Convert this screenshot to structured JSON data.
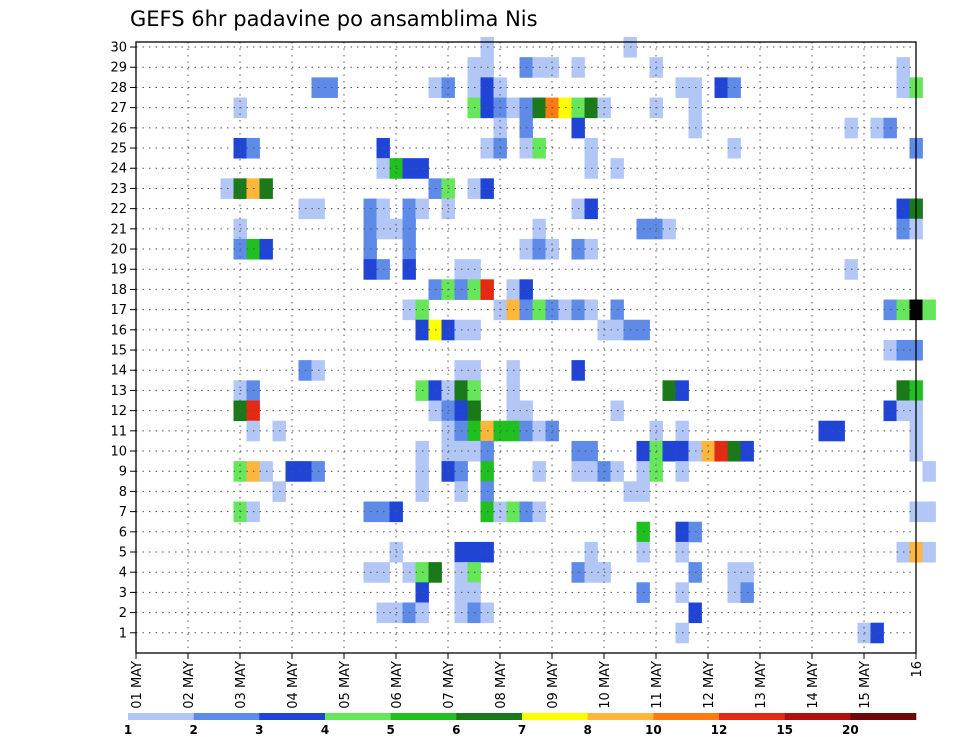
{
  "chart_data": {
    "type": "heatmap",
    "title": "GEFS 6hr padavine po ansamblima Nis",
    "y_ticks": [
      "1",
      "2",
      "3",
      "4",
      "5",
      "6",
      "7",
      "8",
      "9",
      "10",
      "11",
      "12",
      "13",
      "14",
      "15",
      "16",
      "17",
      "18",
      "19",
      "20",
      "21",
      "22",
      "23",
      "24",
      "25",
      "26",
      "27",
      "28",
      "29",
      "30"
    ],
    "x_ticks": [
      "01 MAY",
      "02 MAY",
      "03 MAY",
      "04 MAY",
      "05 MAY",
      "06 MAY",
      "07 MAY",
      "08 MAY",
      "09 MAY",
      "10 MAY",
      "11 MAY",
      "12 MAY",
      "13 MAY",
      "14 MAY",
      "15 MAY",
      "16"
    ],
    "x_range_days": [
      1,
      16
    ],
    "y_range_members": [
      1,
      30
    ],
    "grid": true,
    "colorbar": {
      "ticks": [
        "1",
        "2",
        "3",
        "4",
        "5",
        "6",
        "7",
        "8",
        "10",
        "12",
        "15",
        "20"
      ],
      "colors": [
        "#b3c7f7",
        "#5f8be8",
        "#1f44d6",
        "#65e65b",
        "#20c020",
        "#1a7a1a",
        "#ffff00",
        "#ffb63a",
        "#ff7a10",
        "#e62a12",
        "#b01010",
        "#6e0808"
      ]
    },
    "cells": [
      [
        7.75,
        30,
        1
      ],
      [
        10.5,
        30,
        1
      ],
      [
        7.5,
        29,
        1
      ],
      [
        7.75,
        29,
        1
      ],
      [
        8.5,
        29,
        2
      ],
      [
        8.75,
        29,
        1
      ],
      [
        9.0,
        29,
        1
      ],
      [
        9.5,
        29,
        1
      ],
      [
        11.0,
        29,
        1
      ],
      [
        15.75,
        29,
        1
      ],
      [
        4.5,
        28,
        2
      ],
      [
        4.75,
        28,
        2
      ],
      [
        6.75,
        28,
        1
      ],
      [
        7.0,
        28,
        2
      ],
      [
        7.5,
        28,
        1
      ],
      [
        7.75,
        28,
        3
      ],
      [
        8.0,
        28,
        1
      ],
      [
        11.5,
        28,
        1
      ],
      [
        11.75,
        28,
        1
      ],
      [
        12.25,
        28,
        3
      ],
      [
        12.5,
        28,
        2
      ],
      [
        15.75,
        28,
        1
      ],
      [
        16.0,
        28,
        4
      ],
      [
        3.0,
        27,
        1
      ],
      [
        7.5,
        27,
        4
      ],
      [
        7.75,
        27,
        3
      ],
      [
        8.0,
        27,
        2
      ],
      [
        8.25,
        27,
        1
      ],
      [
        8.5,
        27,
        2
      ],
      [
        8.75,
        27,
        6
      ],
      [
        9.0,
        27,
        9
      ],
      [
        9.25,
        27,
        7
      ],
      [
        9.5,
        27,
        4
      ],
      [
        9.75,
        27,
        6
      ],
      [
        10.0,
        27,
        1
      ],
      [
        11.0,
        27,
        1
      ],
      [
        11.75,
        27,
        1
      ],
      [
        8.0,
        26,
        1
      ],
      [
        8.5,
        26,
        2
      ],
      [
        9.5,
        26,
        3
      ],
      [
        11.75,
        26,
        1
      ],
      [
        14.75,
        26,
        1
      ],
      [
        15.25,
        26,
        1
      ],
      [
        15.5,
        26,
        2
      ],
      [
        3.0,
        25,
        3
      ],
      [
        3.25,
        25,
        2
      ],
      [
        5.75,
        25,
        3
      ],
      [
        7.75,
        25,
        1
      ],
      [
        8.0,
        25,
        2
      ],
      [
        8.5,
        25,
        1
      ],
      [
        8.75,
        25,
        4
      ],
      [
        9.75,
        25,
        1
      ],
      [
        12.5,
        25,
        1
      ],
      [
        16.0,
        25,
        2
      ],
      [
        5.75,
        24,
        1
      ],
      [
        6.0,
        24,
        5
      ],
      [
        6.25,
        24,
        3
      ],
      [
        6.5,
        24,
        3
      ],
      [
        9.75,
        24,
        1
      ],
      [
        10.25,
        24,
        1
      ],
      [
        2.75,
        23,
        1
      ],
      [
        3.0,
        23,
        6
      ],
      [
        3.25,
        23,
        8
      ],
      [
        3.5,
        23,
        6
      ],
      [
        6.75,
        23,
        2
      ],
      [
        7.0,
        23,
        4
      ],
      [
        7.5,
        23,
        1
      ],
      [
        7.75,
        23,
        3
      ],
      [
        4.25,
        22,
        1
      ],
      [
        4.5,
        22,
        1
      ],
      [
        5.5,
        22,
        2
      ],
      [
        5.75,
        22,
        1
      ],
      [
        6.25,
        22,
        2
      ],
      [
        6.5,
        22,
        1
      ],
      [
        7.0,
        22,
        1
      ],
      [
        9.5,
        22,
        1
      ],
      [
        9.75,
        22,
        3
      ],
      [
        15.75,
        22,
        3
      ],
      [
        16.0,
        22,
        6
      ],
      [
        3.0,
        21,
        1
      ],
      [
        5.5,
        21,
        2
      ],
      [
        5.75,
        21,
        1
      ],
      [
        6.0,
        21,
        1
      ],
      [
        6.25,
        21,
        2
      ],
      [
        8.75,
        21,
        1
      ],
      [
        10.75,
        21,
        2
      ],
      [
        11.0,
        21,
        2
      ],
      [
        11.25,
        21,
        1
      ],
      [
        15.75,
        21,
        2
      ],
      [
        16.0,
        21,
        1
      ],
      [
        3.0,
        20,
        2
      ],
      [
        3.25,
        20,
        5
      ],
      [
        3.5,
        20,
        3
      ],
      [
        5.5,
        20,
        2
      ],
      [
        6.25,
        20,
        2
      ],
      [
        8.5,
        20,
        1
      ],
      [
        8.75,
        20,
        2
      ],
      [
        9.0,
        20,
        1
      ],
      [
        9.5,
        20,
        2
      ],
      [
        9.75,
        20,
        1
      ],
      [
        5.5,
        19,
        3
      ],
      [
        5.75,
        19,
        2
      ],
      [
        6.25,
        19,
        3
      ],
      [
        7.25,
        19,
        1
      ],
      [
        7.5,
        19,
        1
      ],
      [
        14.75,
        19,
        1
      ],
      [
        6.75,
        18,
        2
      ],
      [
        7.0,
        18,
        4
      ],
      [
        7.25,
        18,
        2
      ],
      [
        7.5,
        18,
        4
      ],
      [
        7.75,
        18,
        10
      ],
      [
        8.25,
        18,
        1
      ],
      [
        8.5,
        18,
        3
      ],
      [
        6.25,
        17,
        1
      ],
      [
        6.5,
        17,
        4
      ],
      [
        8.0,
        17,
        1
      ],
      [
        8.25,
        17,
        8
      ],
      [
        8.5,
        17,
        2
      ],
      [
        8.75,
        17,
        4
      ],
      [
        9.0,
        17,
        2
      ],
      [
        9.25,
        17,
        1
      ],
      [
        9.5,
        17,
        2
      ],
      [
        9.75,
        17,
        1
      ],
      [
        10.25,
        17,
        2
      ],
      [
        15.5,
        17,
        2
      ],
      [
        15.75,
        17,
        4
      ],
      [
        16.0,
        17,
        15
      ],
      [
        16.25,
        17,
        4
      ],
      [
        6.5,
        16,
        3
      ],
      [
        6.75,
        16,
        7
      ],
      [
        7.0,
        16,
        3
      ],
      [
        7.25,
        16,
        1
      ],
      [
        7.5,
        16,
        1
      ],
      [
        10.0,
        16,
        1
      ],
      [
        10.25,
        16,
        1
      ],
      [
        10.5,
        16,
        2
      ],
      [
        10.75,
        16,
        2
      ],
      [
        15.5,
        15,
        1
      ],
      [
        15.75,
        15,
        2
      ],
      [
        16.0,
        15,
        2
      ],
      [
        4.25,
        14,
        2
      ],
      [
        4.5,
        14,
        1
      ],
      [
        7.25,
        14,
        1
      ],
      [
        7.5,
        14,
        1
      ],
      [
        8.25,
        14,
        1
      ],
      [
        9.5,
        14,
        3
      ],
      [
        3.0,
        13,
        1
      ],
      [
        3.25,
        13,
        2
      ],
      [
        6.5,
        13,
        4
      ],
      [
        6.75,
        13,
        3
      ],
      [
        7.0,
        13,
        1
      ],
      [
        7.25,
        13,
        6
      ],
      [
        7.5,
        13,
        4
      ],
      [
        8.25,
        13,
        1
      ],
      [
        11.25,
        13,
        6
      ],
      [
        11.5,
        13,
        3
      ],
      [
        15.75,
        13,
        6
      ],
      [
        16.0,
        13,
        5
      ],
      [
        3.0,
        12,
        6
      ],
      [
        3.25,
        12,
        10
      ],
      [
        6.75,
        12,
        1
      ],
      [
        7.0,
        12,
        2
      ],
      [
        7.25,
        12,
        3
      ],
      [
        7.5,
        12,
        6
      ],
      [
        8.25,
        12,
        1
      ],
      [
        8.5,
        12,
        1
      ],
      [
        10.25,
        12,
        1
      ],
      [
        15.5,
        12,
        3
      ],
      [
        15.75,
        12,
        1
      ],
      [
        16.0,
        12,
        1
      ],
      [
        3.25,
        11,
        1
      ],
      [
        3.75,
        11,
        1
      ],
      [
        7.0,
        11,
        1
      ],
      [
        7.25,
        11,
        2
      ],
      [
        7.5,
        11,
        5
      ],
      [
        7.75,
        11,
        8
      ],
      [
        8.0,
        11,
        5
      ],
      [
        8.25,
        11,
        5
      ],
      [
        8.5,
        11,
        2
      ],
      [
        8.75,
        11,
        1
      ],
      [
        9.0,
        11,
        2
      ],
      [
        11.0,
        11,
        1
      ],
      [
        11.5,
        11,
        1
      ],
      [
        14.25,
        11,
        3
      ],
      [
        14.5,
        11,
        3
      ],
      [
        16.0,
        11,
        1
      ],
      [
        6.5,
        10,
        1
      ],
      [
        7.0,
        10,
        1
      ],
      [
        7.25,
        10,
        1
      ],
      [
        7.5,
        10,
        1
      ],
      [
        7.75,
        10,
        2
      ],
      [
        9.5,
        10,
        2
      ],
      [
        9.75,
        10,
        2
      ],
      [
        10.75,
        10,
        3
      ],
      [
        11.0,
        10,
        4
      ],
      [
        11.25,
        10,
        3
      ],
      [
        11.5,
        10,
        3
      ],
      [
        11.75,
        10,
        1
      ],
      [
        12.0,
        10,
        8
      ],
      [
        12.25,
        10,
        10
      ],
      [
        12.5,
        10,
        6
      ],
      [
        12.75,
        10,
        3
      ],
      [
        16.0,
        10,
        1
      ],
      [
        3.0,
        9,
        4
      ],
      [
        3.25,
        9,
        8
      ],
      [
        3.5,
        9,
        1
      ],
      [
        4.0,
        9,
        3
      ],
      [
        4.25,
        9,
        3
      ],
      [
        4.5,
        9,
        2
      ],
      [
        6.5,
        9,
        1
      ],
      [
        7.0,
        9,
        3
      ],
      [
        7.25,
        9,
        2
      ],
      [
        7.75,
        9,
        5
      ],
      [
        8.75,
        9,
        1
      ],
      [
        9.5,
        9,
        1
      ],
      [
        9.75,
        9,
        1
      ],
      [
        10.0,
        9,
        2
      ],
      [
        10.25,
        9,
        1
      ],
      [
        10.75,
        9,
        1
      ],
      [
        11.0,
        9,
        4
      ],
      [
        11.5,
        9,
        1
      ],
      [
        16.25,
        9,
        1
      ],
      [
        3.75,
        8,
        1
      ],
      [
        6.5,
        8,
        1
      ],
      [
        7.25,
        8,
        1
      ],
      [
        7.75,
        8,
        2
      ],
      [
        10.5,
        8,
        1
      ],
      [
        10.75,
        8,
        1
      ],
      [
        3.0,
        7,
        4
      ],
      [
        3.25,
        7,
        1
      ],
      [
        5.5,
        7,
        2
      ],
      [
        5.75,
        7,
        2
      ],
      [
        6.0,
        7,
        3
      ],
      [
        7.75,
        7,
        5
      ],
      [
        8.0,
        7,
        1
      ],
      [
        8.25,
        7,
        4
      ],
      [
        8.5,
        7,
        2
      ],
      [
        8.75,
        7,
        1
      ],
      [
        16.0,
        7,
        1
      ],
      [
        16.25,
        7,
        1
      ],
      [
        10.75,
        6,
        5
      ],
      [
        11.5,
        6,
        3
      ],
      [
        11.75,
        6,
        2
      ],
      [
        6.0,
        5,
        1
      ],
      [
        7.25,
        5,
        3
      ],
      [
        7.5,
        5,
        3
      ],
      [
        7.75,
        5,
        3
      ],
      [
        9.75,
        5,
        1
      ],
      [
        10.75,
        5,
        1
      ],
      [
        11.5,
        5,
        1
      ],
      [
        15.75,
        5,
        1
      ],
      [
        16.0,
        5,
        8
      ],
      [
        16.25,
        5,
        1
      ],
      [
        5.5,
        4,
        1
      ],
      [
        5.75,
        4,
        1
      ],
      [
        6.25,
        4,
        1
      ],
      [
        6.5,
        4,
        4
      ],
      [
        6.75,
        4,
        6
      ],
      [
        7.25,
        4,
        1
      ],
      [
        7.5,
        4,
        4
      ],
      [
        9.5,
        4,
        2
      ],
      [
        9.75,
        4,
        1
      ],
      [
        10.0,
        4,
        1
      ],
      [
        11.75,
        4,
        2
      ],
      [
        12.5,
        4,
        1
      ],
      [
        12.75,
        4,
        1
      ],
      [
        6.5,
        3,
        3
      ],
      [
        7.25,
        3,
        1
      ],
      [
        7.5,
        3,
        1
      ],
      [
        10.75,
        3,
        2
      ],
      [
        11.5,
        3,
        1
      ],
      [
        12.5,
        3,
        1
      ],
      [
        12.75,
        3,
        2
      ],
      [
        5.75,
        2,
        1
      ],
      [
        6.0,
        2,
        1
      ],
      [
        6.25,
        2,
        2
      ],
      [
        6.5,
        2,
        1
      ],
      [
        7.25,
        2,
        1
      ],
      [
        7.5,
        2,
        2
      ],
      [
        7.75,
        2,
        1
      ],
      [
        11.75,
        2,
        3
      ],
      [
        11.5,
        1,
        1
      ],
      [
        15.0,
        1,
        1
      ],
      [
        15.25,
        1,
        3
      ]
    ]
  }
}
